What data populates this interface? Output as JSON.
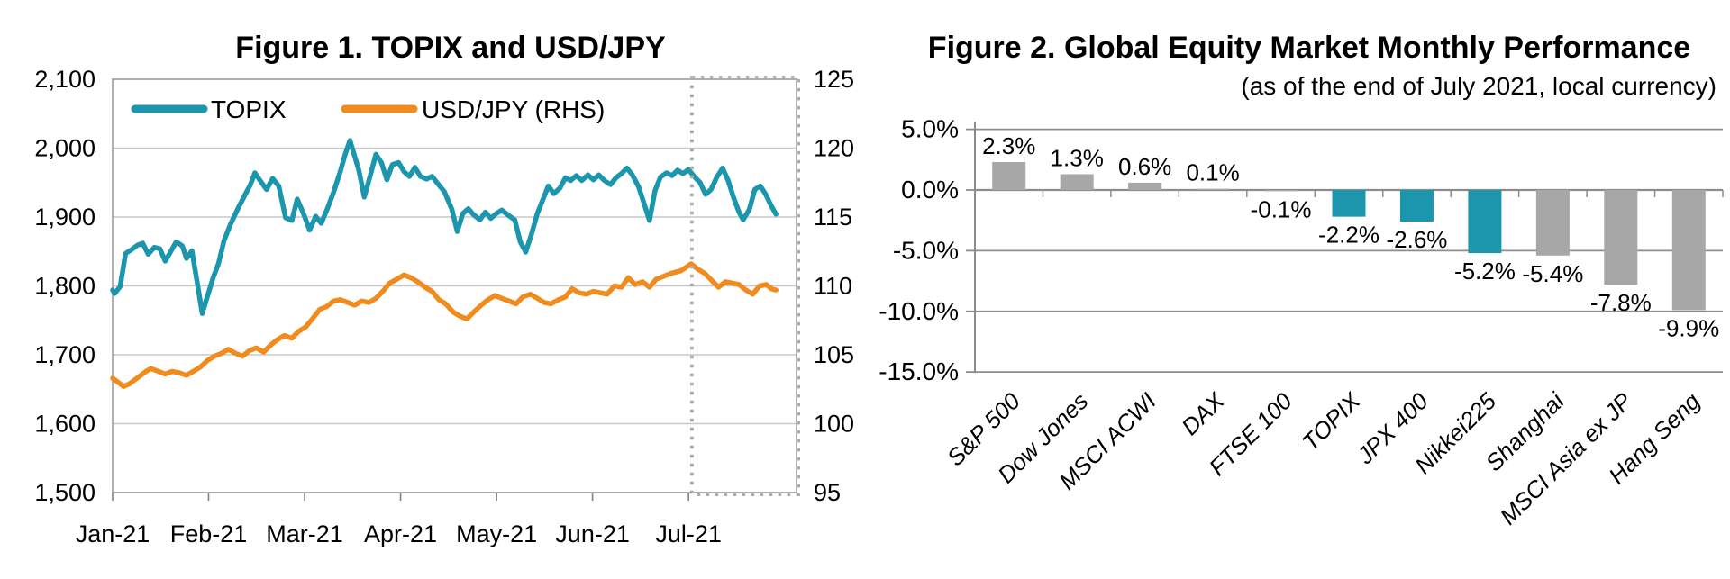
{
  "chart_data": [
    {
      "id": "topix-usdjpy",
      "type": "line",
      "title": "Figure 1. TOPIX and USD/JPY",
      "x_tick_labels": [
        "Jan-21",
        "Feb-21",
        "Mar-21",
        "Apr-21",
        "May-21",
        "Jun-21",
        "Jul-21"
      ],
      "x_tick_pct": [
        0,
        14.03,
        28.07,
        42.1,
        56.14,
        70.17,
        84.21
      ],
      "left_axis": {
        "min": 1500,
        "max": 2100,
        "step": 100,
        "tick_labels": [
          "2,100",
          "2,000",
          "1,900",
          "1,800",
          "1,700",
          "1,600",
          "1,500"
        ]
      },
      "right_axis": {
        "min": 95,
        "max": 125,
        "step": 5,
        "tick_labels": [
          "125",
          "120",
          "115",
          "110",
          "105",
          "100",
          "95"
        ]
      },
      "legend": [
        {
          "label": "TOPIX",
          "color": "#1B96AC"
        },
        {
          "label": "USD/JPY (RHS)",
          "color": "#F08B1E"
        }
      ],
      "grid_color": "#C9C9C9",
      "border_color": "#A8A8A8",
      "highlight_box": {
        "from_pct": 84.7,
        "to_pct": 100,
        "color": "#ABABAB",
        "meaning": "dotted box highlighting July 2021"
      },
      "series": [
        {
          "name": "TOPIX",
          "axis": "left",
          "color": "#1B96AC",
          "points": [
            [
              0,
              1794
            ],
            [
              0.3,
              1789
            ],
            [
              1.1,
              1799
            ],
            [
              1.9,
              1847
            ],
            [
              2.8,
              1853
            ],
            [
              3.6,
              1859
            ],
            [
              4.4,
              1862
            ],
            [
              5.2,
              1846
            ],
            [
              6.1,
              1856
            ],
            [
              6.9,
              1854
            ],
            [
              7.7,
              1836
            ],
            [
              8.5,
              1850
            ],
            [
              9.3,
              1864
            ],
            [
              10.2,
              1858
            ],
            [
              10.8,
              1840
            ],
            [
              11.6,
              1851
            ],
            [
              12.4,
              1803
            ],
            [
              13.1,
              1760
            ],
            [
              13.9,
              1786
            ],
            [
              14.7,
              1812
            ],
            [
              15.5,
              1833
            ],
            [
              16.3,
              1866
            ],
            [
              17.3,
              1891
            ],
            [
              18.4,
              1914
            ],
            [
              19.4,
              1933
            ],
            [
              20.1,
              1946
            ],
            [
              20.8,
              1964
            ],
            [
              21.7,
              1951
            ],
            [
              22.5,
              1940
            ],
            [
              23.4,
              1956
            ],
            [
              24.3,
              1945
            ],
            [
              25.3,
              1899
            ],
            [
              26.2,
              1895
            ],
            [
              27,
              1926
            ],
            [
              27.9,
              1905
            ],
            [
              28.8,
              1881
            ],
            [
              29.7,
              1901
            ],
            [
              30.5,
              1891
            ],
            [
              31.4,
              1912
            ],
            [
              32.3,
              1936
            ],
            [
              33.3,
              1966
            ],
            [
              34,
              1991
            ],
            [
              34.7,
              2011
            ],
            [
              35.4,
              1988
            ],
            [
              36,
              1968
            ],
            [
              36.8,
              1929
            ],
            [
              37.7,
              1961
            ],
            [
              38.5,
              1991
            ],
            [
              39.3,
              1979
            ],
            [
              40.1,
              1954
            ],
            [
              40.9,
              1976
            ],
            [
              41.8,
              1979
            ],
            [
              42.6,
              1966
            ],
            [
              43.4,
              1959
            ],
            [
              44.2,
              1972
            ],
            [
              45,
              1959
            ],
            [
              45.9,
              1955
            ],
            [
              46.7,
              1959
            ],
            [
              47.5,
              1949
            ],
            [
              48.5,
              1937
            ],
            [
              49.6,
              1911
            ],
            [
              50.4,
              1879
            ],
            [
              51.2,
              1905
            ],
            [
              52,
              1912
            ],
            [
              52.8,
              1903
            ],
            [
              53.7,
              1896
            ],
            [
              54.5,
              1907
            ],
            [
              55.3,
              1898
            ],
            [
              56.1,
              1905
            ],
            [
              56.9,
              1910
            ],
            [
              57.8,
              1903
            ],
            [
              58.8,
              1896
            ],
            [
              59.6,
              1864
            ],
            [
              60.4,
              1849
            ],
            [
              61.3,
              1877
            ],
            [
              62.1,
              1905
            ],
            [
              62.9,
              1925
            ],
            [
              63.7,
              1945
            ],
            [
              64.5,
              1934
            ],
            [
              65.4,
              1942
            ],
            [
              66.2,
              1957
            ],
            [
              67,
              1953
            ],
            [
              67.8,
              1960
            ],
            [
              68.6,
              1953
            ],
            [
              69.5,
              1961
            ],
            [
              70.3,
              1954
            ],
            [
              71.1,
              1961
            ],
            [
              71.9,
              1953
            ],
            [
              72.8,
              1947
            ],
            [
              73.6,
              1957
            ],
            [
              74.4,
              1963
            ],
            [
              75.2,
              1971
            ],
            [
              76,
              1961
            ],
            [
              76.9,
              1944
            ],
            [
              77.7,
              1920
            ],
            [
              78.5,
              1895
            ],
            [
              79.3,
              1938
            ],
            [
              80.1,
              1958
            ],
            [
              81,
              1964
            ],
            [
              81.8,
              1960
            ],
            [
              82.6,
              1968
            ],
            [
              83.4,
              1963
            ],
            [
              84.2,
              1969
            ],
            [
              85.1,
              1958
            ],
            [
              85.9,
              1950
            ],
            [
              86.7,
              1933
            ],
            [
              87.5,
              1940
            ],
            [
              88.3,
              1957
            ],
            [
              89.2,
              1971
            ],
            [
              90,
              1953
            ],
            [
              90.8,
              1928
            ],
            [
              91.6,
              1907
            ],
            [
              92.2,
              1896
            ],
            [
              93.1,
              1911
            ],
            [
              93.9,
              1940
            ],
            [
              94.7,
              1945
            ],
            [
              95.5,
              1933
            ],
            [
              96.2,
              1918
            ],
            [
              97,
              1904
            ]
          ]
        },
        {
          "name": "USD/JPY (RHS)",
          "axis": "right",
          "color": "#F08B1E",
          "points": [
            [
              0,
              103.3
            ],
            [
              0.8,
              103.0
            ],
            [
              1.6,
              102.7
            ],
            [
              2.5,
              102.9
            ],
            [
              3.3,
              103.2
            ],
            [
              4.1,
              103.5
            ],
            [
              4.9,
              103.8
            ],
            [
              5.6,
              104.0
            ],
            [
              6.7,
              103.8
            ],
            [
              7.7,
              103.6
            ],
            [
              8.7,
              103.8
            ],
            [
              9.7,
              103.7
            ],
            [
              10.8,
              103.5
            ],
            [
              11.8,
              103.8
            ],
            [
              12.8,
              104.1
            ],
            [
              13.9,
              104.6
            ],
            [
              14.9,
              104.9
            ],
            [
              15.9,
              105.1
            ],
            [
              16.9,
              105.4
            ],
            [
              18,
              105.1
            ],
            [
              19,
              104.9
            ],
            [
              20,
              105.3
            ],
            [
              21,
              105.5
            ],
            [
              22.1,
              105.2
            ],
            [
              23.1,
              105.7
            ],
            [
              24.1,
              106.1
            ],
            [
              25.1,
              106.4
            ],
            [
              26.2,
              106.2
            ],
            [
              27.2,
              106.7
            ],
            [
              28.2,
              107.0
            ],
            [
              29.2,
              107.6
            ],
            [
              30.3,
              108.3
            ],
            [
              31.3,
              108.5
            ],
            [
              32.3,
              108.9
            ],
            [
              33.3,
              109.0
            ],
            [
              34.4,
              108.8
            ],
            [
              35.4,
              108.6
            ],
            [
              36.4,
              108.9
            ],
            [
              37.5,
              108.8
            ],
            [
              38.5,
              109.1
            ],
            [
              39.5,
              109.6
            ],
            [
              40.5,
              110.2
            ],
            [
              41.6,
              110.5
            ],
            [
              42.6,
              110.8
            ],
            [
              43.6,
              110.6
            ],
            [
              44.6,
              110.3
            ],
            [
              45.7,
              109.9
            ],
            [
              46.7,
              109.6
            ],
            [
              47.7,
              109.0
            ],
            [
              48.7,
              108.7
            ],
            [
              49.8,
              108.1
            ],
            [
              50.8,
              107.8
            ],
            [
              51.8,
              107.6
            ],
            [
              52.8,
              108.1
            ],
            [
              53.9,
              108.6
            ],
            [
              54.9,
              109.0
            ],
            [
              55.9,
              109.3
            ],
            [
              56.9,
              109.1
            ],
            [
              58,
              108.9
            ],
            [
              59,
              108.7
            ],
            [
              60,
              109.2
            ],
            [
              61.1,
              109.4
            ],
            [
              62.1,
              109.1
            ],
            [
              63.1,
              108.8
            ],
            [
              64.1,
              108.7
            ],
            [
              65.2,
              109.0
            ],
            [
              66.2,
              109.2
            ],
            [
              67.2,
              109.8
            ],
            [
              68.2,
              109.5
            ],
            [
              69.3,
              109.4
            ],
            [
              70.3,
              109.6
            ],
            [
              71.3,
              109.5
            ],
            [
              72.3,
              109.4
            ],
            [
              73.4,
              110.0
            ],
            [
              74.4,
              109.9
            ],
            [
              75.4,
              110.6
            ],
            [
              76.4,
              110.1
            ],
            [
              77.5,
              110.3
            ],
            [
              78.5,
              109.9
            ],
            [
              79.5,
              110.5
            ],
            [
              80.6,
              110.7
            ],
            [
              81.6,
              110.9
            ],
            [
              83.1,
              111.1
            ],
            [
              84.6,
              111.6
            ],
            [
              85.6,
              111.2
            ],
            [
              86.6,
              110.9
            ],
            [
              87.6,
              110.4
            ],
            [
              88.6,
              109.9
            ],
            [
              89.6,
              110.3
            ],
            [
              90.6,
              110.2
            ],
            [
              91.6,
              110.1
            ],
            [
              92.6,
              109.7
            ],
            [
              93.6,
              109.4
            ],
            [
              94.6,
              110.0
            ],
            [
              95.6,
              110.1
            ],
            [
              96.3,
              109.8
            ],
            [
              97,
              109.7
            ]
          ]
        }
      ]
    },
    {
      "id": "global-equity-monthly-performance",
      "type": "bar",
      "title": "Figure 2. Global Equity Market Monthly Performance",
      "subtitle": "(as of the end of July 2021, local currency)",
      "categories": [
        "S&P 500",
        "Dow Jones",
        "MSCI ACWI",
        "DAX",
        "FTSE 100",
        "TOPIX",
        "JPX 400",
        "Nikkei225",
        "Shanghai",
        "MSCI Asia ex JP",
        "Hang Seng"
      ],
      "values": [
        2.3,
        1.3,
        0.6,
        0.1,
        -0.1,
        -2.2,
        -2.6,
        -5.2,
        -5.4,
        -7.8,
        -9.9
      ],
      "value_labels": [
        "2.3%",
        "1.3%",
        "0.6%",
        "0.1%",
        "-0.1%",
        "-2.2%",
        "-2.6%",
        "-5.2%",
        "-5.4%",
        "-7.8%",
        "-9.9%"
      ],
      "bar_colors": [
        "#A7A7A7",
        "#A7A7A7",
        "#A7A7A7",
        "#A7A7A7",
        "#A7A7A7",
        "#1B96AC",
        "#1B96AC",
        "#1B96AC",
        "#A7A7A7",
        "#A7A7A7",
        "#A7A7A7"
      ],
      "highlight_color": "#1B96AC",
      "default_color": "#A7A7A7",
      "y_ticks": [
        5,
        0,
        -5,
        -10,
        -15
      ],
      "y_tick_labels": [
        "5.0%",
        "0.0%",
        "-5.0%",
        "-10.0%",
        "-15.0%"
      ],
      "ylim": [
        -15,
        5
      ],
      "grid_color": "#8C8C8C",
      "legend_position": "none",
      "grid": true
    }
  ]
}
